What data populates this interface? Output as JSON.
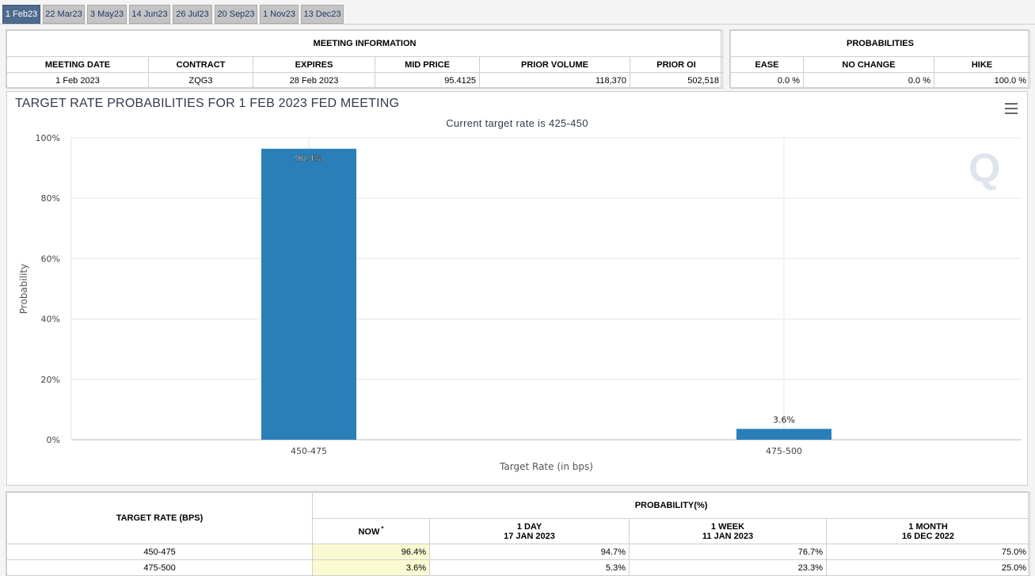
{
  "tabs": [
    "1 Feb23",
    "22 Mar23",
    "3 May23",
    "14 Jun23",
    "26 Jul23",
    "20 Sep23",
    "1 Nov23",
    "13 Dec23"
  ],
  "meeting_info": {
    "title": "MEETING INFORMATION",
    "headers": [
      "MEETING DATE",
      "CONTRACT",
      "EXPIRES",
      "MID PRICE",
      "PRIOR VOLUME",
      "PRIOR OI"
    ],
    "row": [
      "1 Feb 2023",
      "ZQG3",
      "28 Feb 2023",
      "95.4125",
      "118,370",
      "502,518"
    ]
  },
  "probabilities": {
    "title": "PROBABILITIES",
    "headers": [
      "EASE",
      "NO CHANGE",
      "HIKE"
    ],
    "row": [
      "0.0 %",
      "0.0 %",
      "100.0 %"
    ]
  },
  "chart_data": {
    "type": "bar",
    "title": "TARGET RATE PROBABILITIES FOR 1 FEB 2023 FED MEETING",
    "subtitle": "Current target rate is 425-450",
    "xlabel": "Target Rate (in bps)",
    "ylabel": "Probability",
    "categories": [
      "450-475",
      "475-500"
    ],
    "values": [
      96.4,
      3.6
    ],
    "data_labels": [
      "96.4%",
      "3.6%"
    ],
    "ylim": [
      0,
      100
    ],
    "yticks": [
      0,
      20,
      40,
      60,
      80,
      100
    ],
    "ytick_labels": [
      "0%",
      "20%",
      "40%",
      "60%",
      "80%",
      "100%"
    ],
    "bar_color": "#2b7fb8",
    "grid": true,
    "legend": "none"
  },
  "watermark": "Q",
  "prob_table": {
    "target_header": "TARGET RATE (BPS)",
    "prob_header": "PROBABILITY(%)",
    "col_now": "NOW",
    "col_now_mark": "*",
    "col_1day": [
      "1 DAY",
      "17 JAN 2023"
    ],
    "col_1week": [
      "1 WEEK",
      "11 JAN 2023"
    ],
    "col_1month": [
      "1 MONTH",
      "16 DEC 2022"
    ],
    "rows": [
      [
        "450-475",
        "96.4%",
        "94.7%",
        "76.7%",
        "75.0%"
      ],
      [
        "475-500",
        "3.6%",
        "5.3%",
        "23.3%",
        "25.0%"
      ]
    ]
  }
}
